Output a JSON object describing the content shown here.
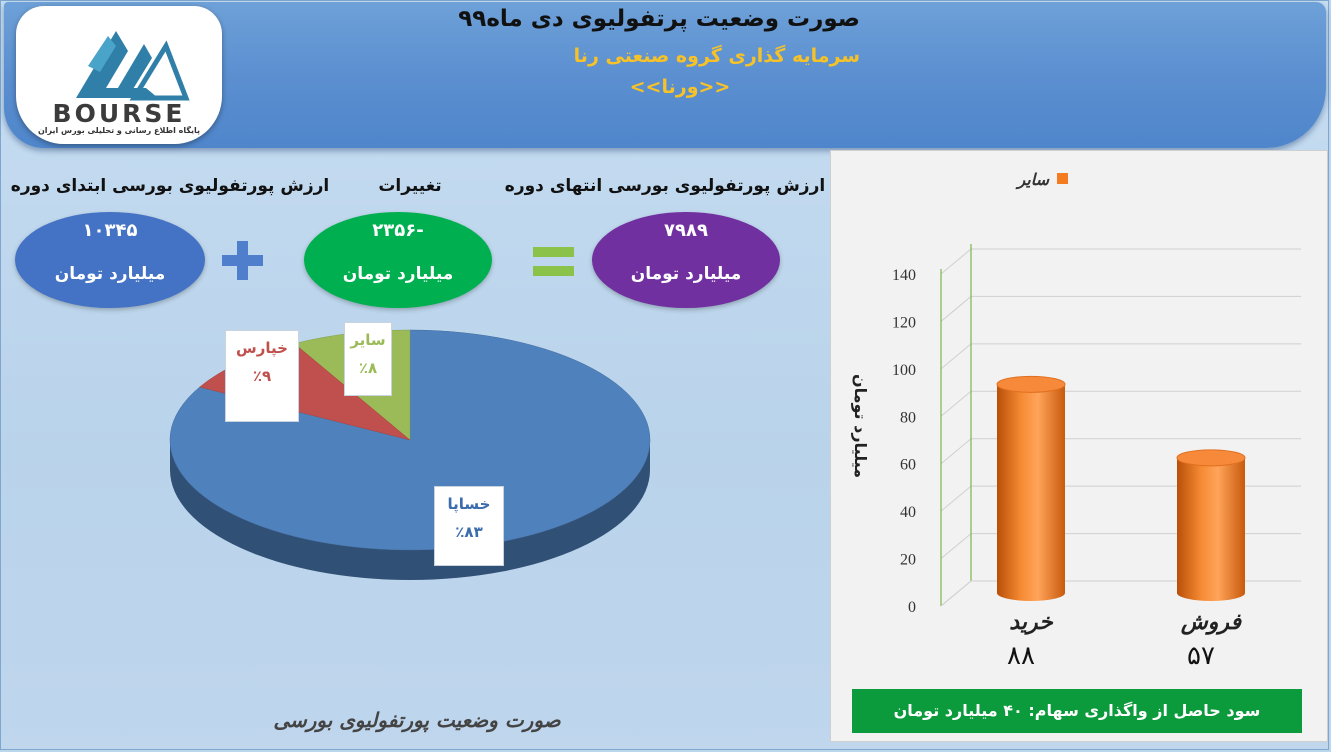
{
  "header": {
    "title": "صورت وضعیت پرتفولیوی دی ماه۹۹",
    "company": "سرمایه گذاری گروه صنعتی رنا",
    "ticker": "<<ورنا>>",
    "logo_text": "BOURSE",
    "logo_subtext": "پایگاه اطلاع رسانی و تحلیلی بورس ایران"
  },
  "summary": {
    "start_label": "ارزش پورتفولیوی بورسی ابتدای دوره",
    "start_value": "۱۰۳۴۵",
    "change_label": "تغییرات",
    "change_value": "-۲۳۵۶",
    "end_label": "ارزش پورتفولیوی بورسی انتهای دوره",
    "end_value": "۷۹۸۹",
    "unit": "میلیارد تومان",
    "colors": {
      "start": "#4472c4",
      "change": "#00b050",
      "end": "#7030a0",
      "plus": "#4f7fcc",
      "equals": "#8bc34a"
    }
  },
  "pie": {
    "caption": "صورت وضعیت پورتفولیوی بورسی",
    "slices": [
      {
        "name": "خساپا",
        "percent_label": "٪۸۳",
        "value": 83,
        "color": "#4f81bd",
        "label_color": "#3b6cae"
      },
      {
        "name": "خپارس",
        "percent_label": "٪۹",
        "value": 9,
        "color": "#c0504d",
        "label_color": "#c0504d"
      },
      {
        "name": "سایر",
        "percent_label": "٪۸",
        "value": 8,
        "color": "#9bbb59",
        "label_color": "#9bbb59"
      }
    ]
  },
  "chart_data": {
    "type": "bar",
    "categories": [
      "خرید",
      "فروش"
    ],
    "values": [
      88,
      57
    ],
    "value_labels": [
      "۸۸",
      "۵۷"
    ],
    "legend": "سایر",
    "legend_placement": "top",
    "ylabel": "میلیارد تومان",
    "ylim": [
      0,
      140
    ],
    "yticks": [
      0,
      20,
      40,
      60,
      80,
      100,
      120,
      140
    ],
    "grid": true,
    "bar_color": "#f47b20"
  },
  "footer": {
    "text": "سود حاصل از واگذاری سهام: ۴۰ میلیارد تومان"
  }
}
